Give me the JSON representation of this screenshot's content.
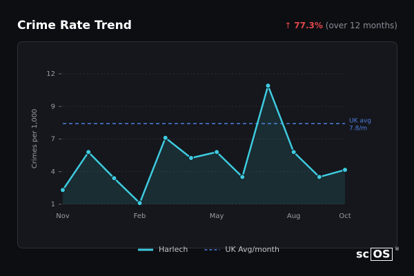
{
  "chart_data": {
    "type": "area-line",
    "title": "Crime Rate Trend",
    "change_arrow": "↑",
    "change_label": "77.3%",
    "change_period": "(over 12 months)",
    "y_label": "Crimes per 1,000",
    "categories": [
      "Nov",
      null,
      null,
      "Feb",
      null,
      null,
      "May",
      null,
      null,
      "Aug",
      null,
      "Oct"
    ],
    "series": [
      {
        "name": "Harlech",
        "color": "#3ecbe0",
        "values": [
          2.2,
          5.4,
          3.2,
          1.1,
          6.6,
          4.9,
          5.4,
          3.3,
          11.0,
          5.4,
          3.3,
          3.9
        ]
      }
    ],
    "reference_line": {
      "name": "UK Avg/month",
      "value": 7.8,
      "color": "#4f7ee0",
      "label": "UK avg",
      "value_label": "7.8/m"
    },
    "ylim": [
      1,
      12
    ],
    "yticks": [
      1,
      {
        "value": 3.75,
        "label": "4"
      },
      {
        "value": 6.5,
        "label": "7"
      },
      {
        "value": 9.25,
        "label": "9"
      },
      12
    ],
    "grid": true,
    "brand": {
      "prefix": "sc",
      "boxed": "OS",
      "mark": "®"
    }
  }
}
